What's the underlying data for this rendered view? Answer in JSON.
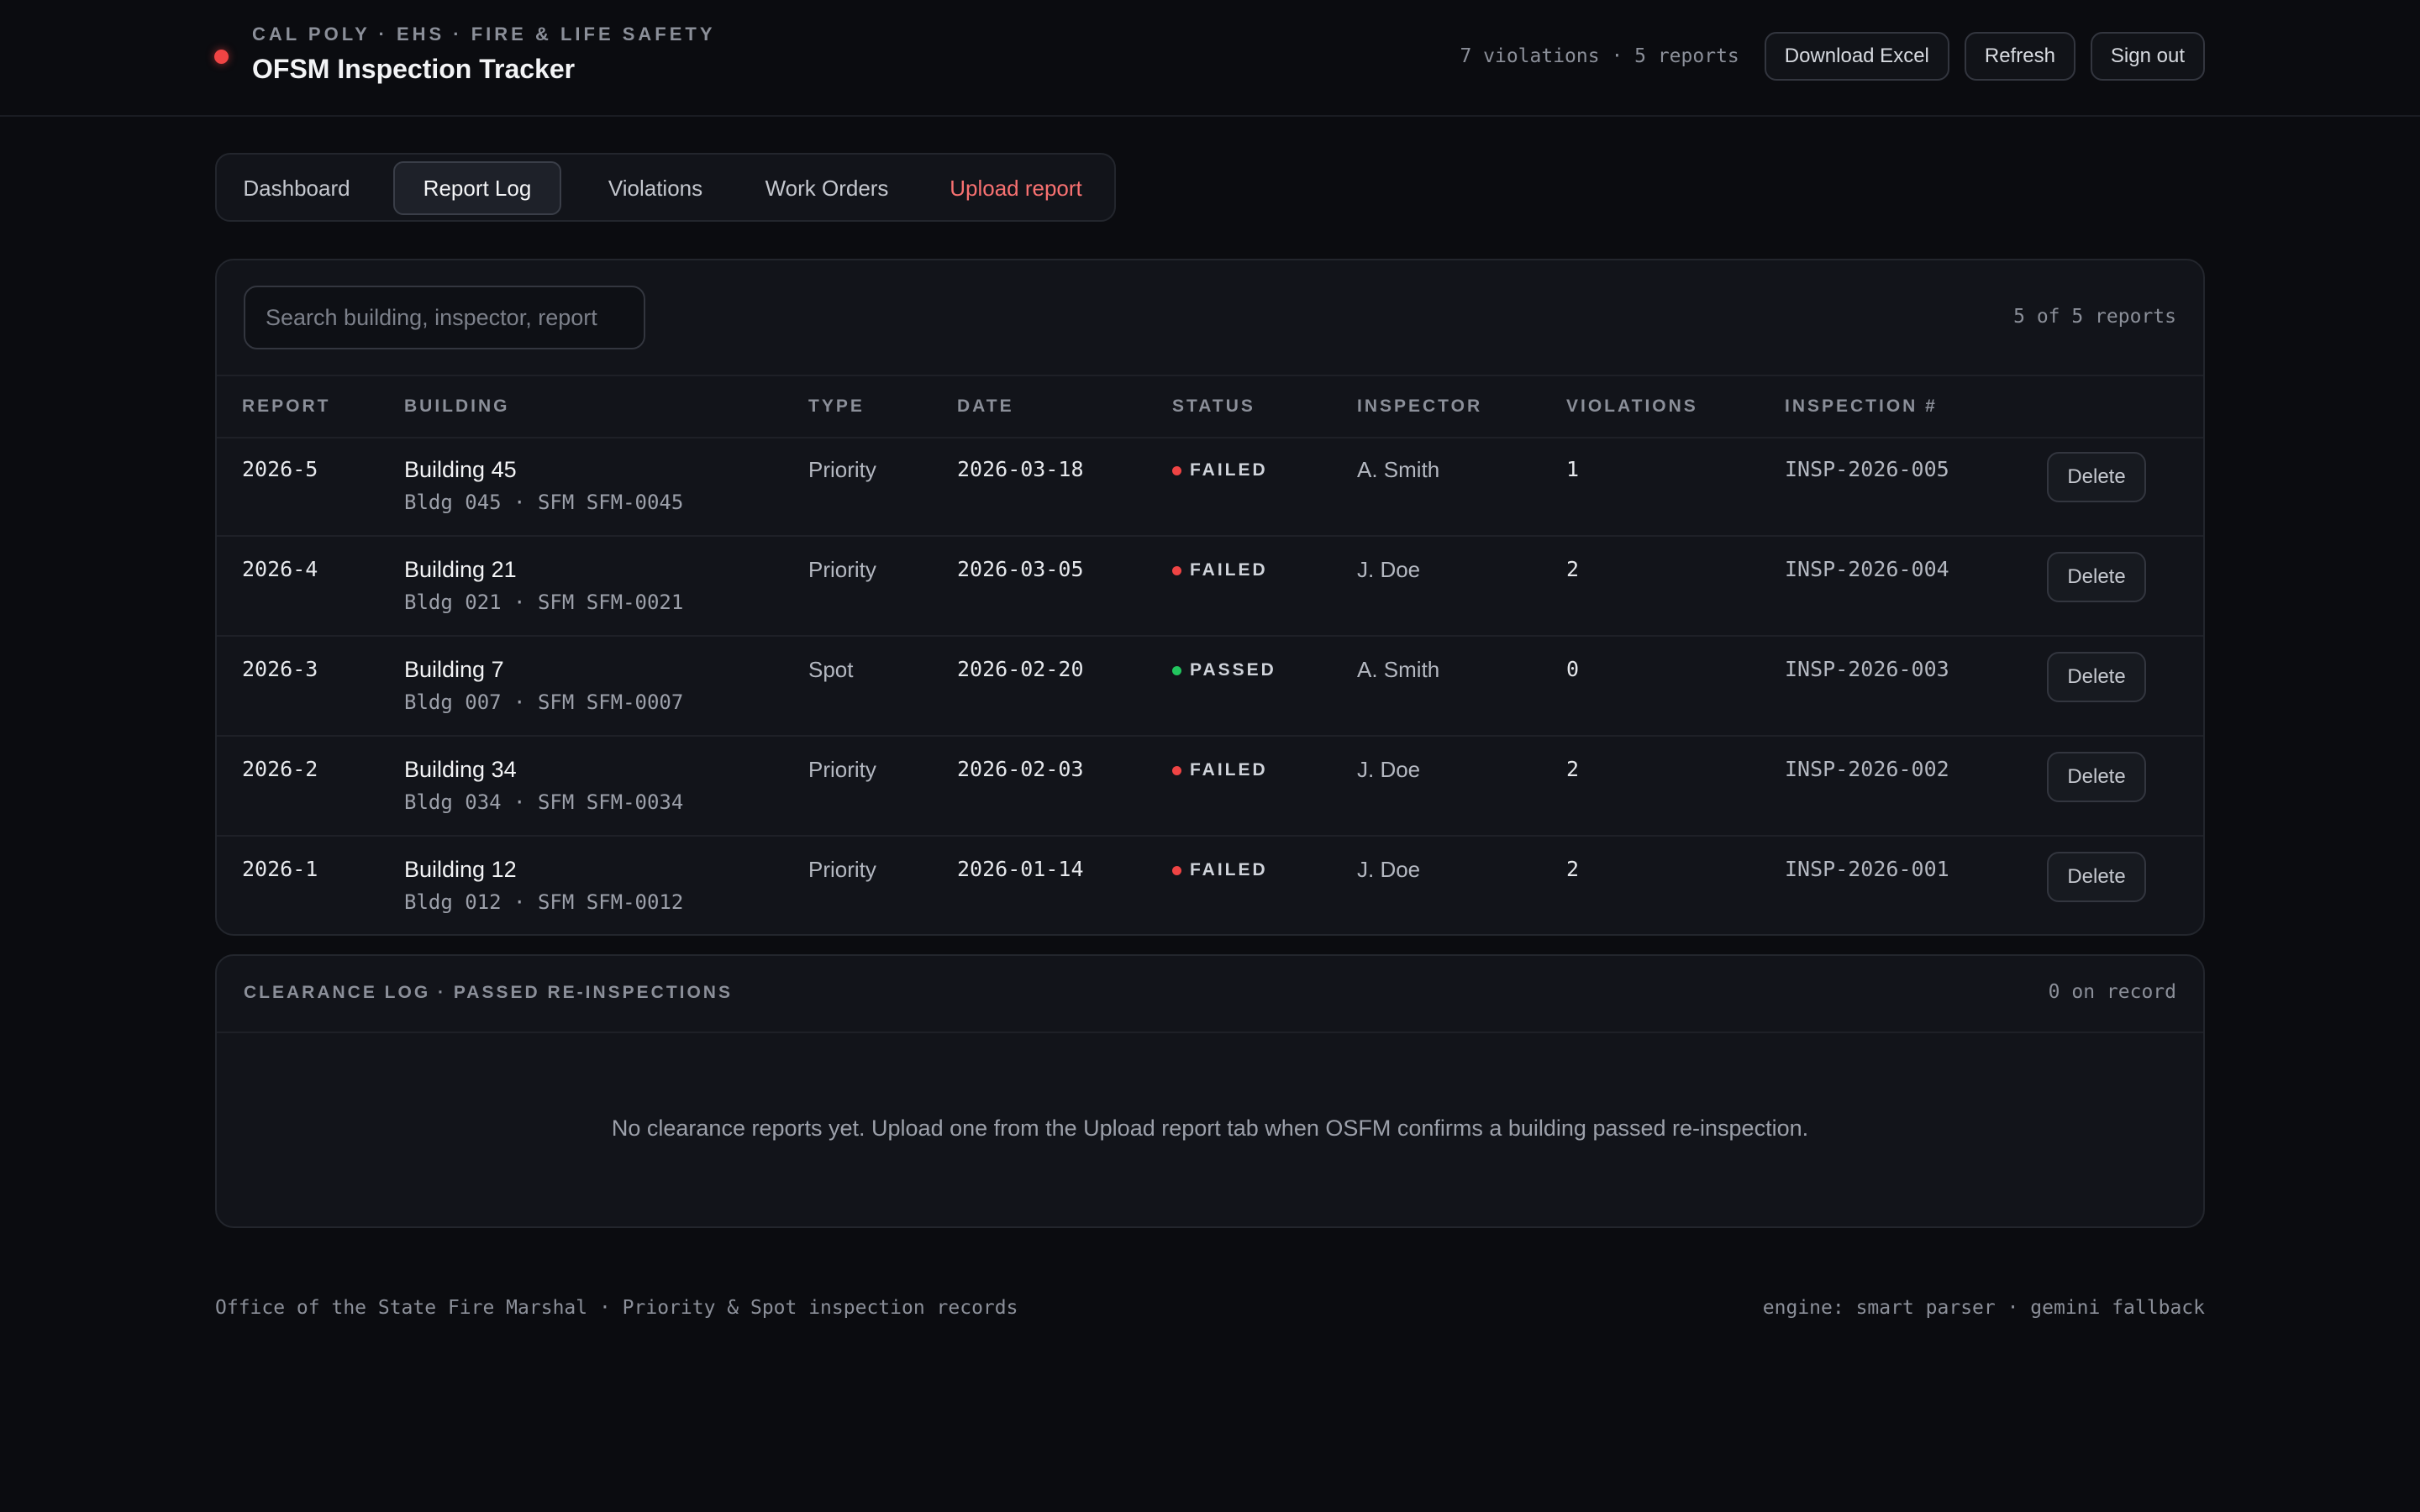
{
  "header": {
    "eyebrow": "CAL POLY · EHS · FIRE & LIFE SAFETY",
    "title": "OFSM Inspection Tracker",
    "summary": "7 violations · 5 reports",
    "buttons": {
      "download": "Download Excel",
      "refresh": "Refresh",
      "signout": "Sign out"
    },
    "status_dot_color": "#ef4444"
  },
  "tabs": [
    {
      "label": "Dashboard",
      "active": false
    },
    {
      "label": "Report Log",
      "active": true
    },
    {
      "label": "Violations",
      "active": false
    },
    {
      "label": "Work Orders",
      "active": false
    },
    {
      "label": "Upload report",
      "active": false,
      "accent": true
    }
  ],
  "search": {
    "placeholder": "Search building, inspector, report",
    "value": ""
  },
  "count_text": "5 of 5 reports",
  "columns": [
    "REPORT",
    "BUILDING",
    "TYPE",
    "DATE",
    "STATUS",
    "INSPECTOR",
    "VIOLATIONS",
    "INSPECTION #"
  ],
  "rows": [
    {
      "report": "2026-5",
      "building": "Building 45",
      "building_sub": "Bldg 045 · SFM SFM-0045",
      "type": "Priority",
      "date": "2026-03-18",
      "status": "FAILED",
      "status_color": "#ef4444",
      "inspector": "A. Smith",
      "violations": "1",
      "inspection_no": "INSP-2026-005",
      "action": "Delete"
    },
    {
      "report": "2026-4",
      "building": "Building 21",
      "building_sub": "Bldg 021 · SFM SFM-0021",
      "type": "Priority",
      "date": "2026-03-05",
      "status": "FAILED",
      "status_color": "#ef4444",
      "inspector": "J. Doe",
      "violations": "2",
      "inspection_no": "INSP-2026-004",
      "action": "Delete"
    },
    {
      "report": "2026-3",
      "building": "Building 7",
      "building_sub": "Bldg 007 · SFM SFM-0007",
      "type": "Spot",
      "date": "2026-02-20",
      "status": "PASSED",
      "status_color": "#22c55e",
      "inspector": "A. Smith",
      "violations": "0",
      "inspection_no": "INSP-2026-003",
      "action": "Delete"
    },
    {
      "report": "2026-2",
      "building": "Building 34",
      "building_sub": "Bldg 034 · SFM SFM-0034",
      "type": "Priority",
      "date": "2026-02-03",
      "status": "FAILED",
      "status_color": "#ef4444",
      "inspector": "J. Doe",
      "violations": "2",
      "inspection_no": "INSP-2026-002",
      "action": "Delete"
    },
    {
      "report": "2026-1",
      "building": "Building 12",
      "building_sub": "Bldg 012 · SFM SFM-0012",
      "type": "Priority",
      "date": "2026-01-14",
      "status": "FAILED",
      "status_color": "#ef4444",
      "inspector": "J. Doe",
      "violations": "2",
      "inspection_no": "INSP-2026-001",
      "action": "Delete"
    }
  ],
  "clearance": {
    "title": "CLEARANCE LOG · PASSED RE-INSPECTIONS",
    "count": "0 on record",
    "empty": "No clearance reports yet. Upload one from the Upload report tab when OSFM confirms a building passed re-inspection."
  },
  "footer": {
    "left": "Office of the State Fire Marshal · Priority & Spot inspection records",
    "right": "engine: smart parser · gemini fallback"
  }
}
